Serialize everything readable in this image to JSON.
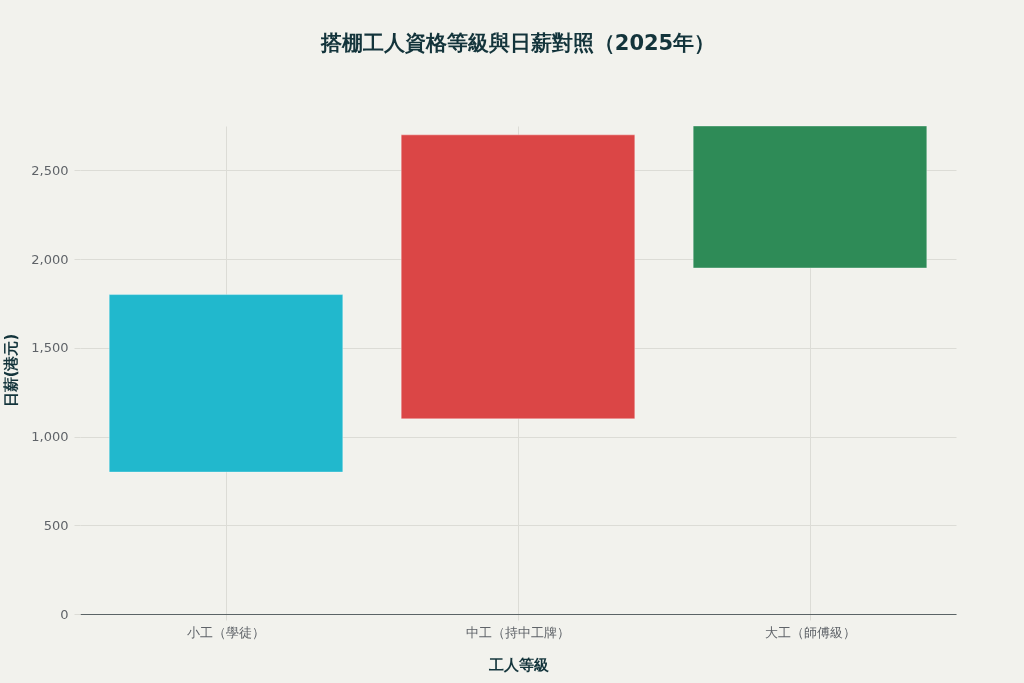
{
  "chart_data": {
    "type": "bar",
    "title": "搭棚工人資格等級與日薪對照（2025年）",
    "xlabel": "工人等級",
    "ylabel": "日薪(港元)",
    "categories": [
      "小工（學徒）",
      "中工（持中工牌）",
      "大工（師傅級）"
    ],
    "values": [
      1000,
      1600,
      800
    ],
    "base": [
      800,
      1100,
      1950
    ],
    "colors": [
      "#21b8cd",
      "#db4646",
      "#2e8b57"
    ],
    "ylim": [
      0,
      2750
    ],
    "yticks": [
      0,
      500,
      {
        "value": 1000,
        "label": "1,000"
      },
      {
        "value": 1500,
        "label": "1,500"
      },
      {
        "value": 2000,
        "label": "2,000"
      },
      {
        "value": 2500,
        "label": "2,500"
      }
    ],
    "grid": true
  }
}
